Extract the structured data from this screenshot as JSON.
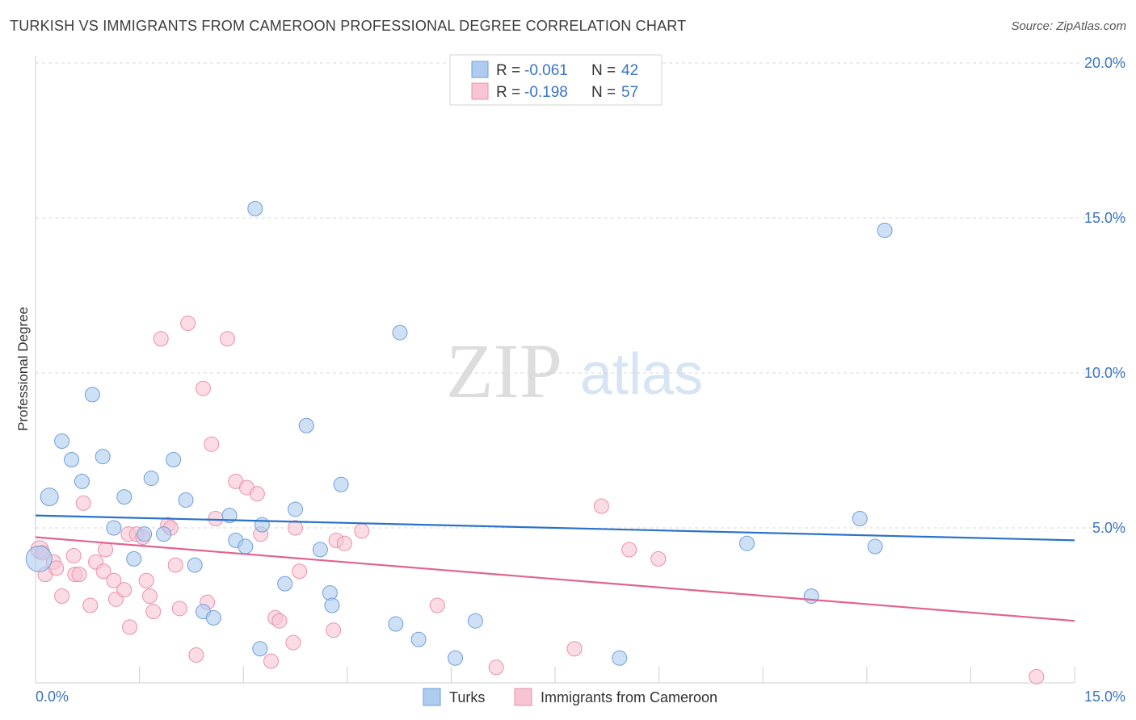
{
  "header": {
    "title": "TURKISH VS IMMIGRANTS FROM CAMEROON PROFESSIONAL DEGREE CORRELATION CHART",
    "source": "Source: ZipAtlas.com"
  },
  "watermark": {
    "zip": "ZIP",
    "atlas": "atlas"
  },
  "stats_legend": {
    "rows": [
      {
        "r_label": "R = ",
        "r_value": "-0.061",
        "n_label": "N = ",
        "n_value": "42",
        "color": "#a9c8ee"
      },
      {
        "r_label": "R = ",
        "r_value": "-0.198",
        "n_label": "N = ",
        "n_value": "57",
        "color": "#f6b8cb"
      }
    ]
  },
  "colors": {
    "turks_fill": "#aecbf0",
    "turks_stroke": "#6f9fd8",
    "turks_line": "#2a72c9",
    "cam_fill": "#f8c4d3",
    "cam_stroke": "#ea8fab",
    "cam_line": "#e0648f",
    "grid": "#d9d9d9",
    "axis_label": "#3a74c4"
  },
  "chart_data": {
    "type": "scatter",
    "title": "TURKISH VS IMMIGRANTS FROM CAMEROON PROFESSIONAL DEGREE CORRELATION CHART",
    "xlabel": "",
    "ylabel": "Professional Degree",
    "xlim": [
      0,
      15
    ],
    "ylim": [
      0,
      20
    ],
    "x_tick_labels": [
      "0.0%",
      "15.0%"
    ],
    "y_ticks": [
      5,
      10,
      15,
      20
    ],
    "y_tick_labels": [
      "5.0%",
      "10.0%",
      "15.0%",
      "20.0%"
    ],
    "grid": true,
    "legend_placement": "bottom-center",
    "series": [
      {
        "name": "Turks",
        "r": -0.061,
        "n": 42,
        "trend": [
          [
            0,
            5.4
          ],
          [
            15,
            4.6
          ]
        ],
        "points": [
          [
            0.05,
            4.0,
            16
          ],
          [
            0.2,
            6.0,
            11
          ],
          [
            0.38,
            7.8,
            9
          ],
          [
            0.52,
            7.2,
            9
          ],
          [
            0.67,
            6.5,
            9
          ],
          [
            0.82,
            9.3,
            9
          ],
          [
            0.97,
            7.3,
            9
          ],
          [
            1.13,
            5.0,
            9
          ],
          [
            1.28,
            6.0,
            9
          ],
          [
            1.42,
            4.0,
            9
          ],
          [
            1.57,
            4.8,
            9
          ],
          [
            1.67,
            6.6,
            9
          ],
          [
            1.85,
            4.8,
            9
          ],
          [
            1.99,
            7.2,
            9
          ],
          [
            2.17,
            5.9,
            9
          ],
          [
            2.3,
            3.8,
            9
          ],
          [
            2.42,
            2.3,
            9
          ],
          [
            2.57,
            2.1,
            9
          ],
          [
            2.8,
            5.4,
            9
          ],
          [
            2.89,
            4.6,
            9
          ],
          [
            3.03,
            4.4,
            9
          ],
          [
            3.17,
            15.3,
            9
          ],
          [
            3.24,
            1.1,
            9
          ],
          [
            3.27,
            5.1,
            9
          ],
          [
            3.6,
            3.2,
            9
          ],
          [
            3.75,
            5.6,
            9
          ],
          [
            3.91,
            8.3,
            9
          ],
          [
            4.11,
            4.3,
            9
          ],
          [
            4.25,
            2.9,
            9
          ],
          [
            4.28,
            2.5,
            9
          ],
          [
            4.41,
            6.4,
            9
          ],
          [
            5.2,
            1.9,
            9
          ],
          [
            5.26,
            11.3,
            9
          ],
          [
            5.53,
            1.4,
            9
          ],
          [
            6.06,
            0.8,
            9
          ],
          [
            6.35,
            2.0,
            9
          ],
          [
            8.43,
            0.8,
            9
          ],
          [
            10.27,
            4.5,
            9
          ],
          [
            11.2,
            2.8,
            9
          ],
          [
            11.9,
            5.3,
            9
          ],
          [
            12.12,
            4.4,
            9
          ],
          [
            12.26,
            14.6,
            9
          ]
        ]
      },
      {
        "name": "Immigrants from Cameroon",
        "r": -0.198,
        "n": 57,
        "trend": [
          [
            0,
            4.7
          ],
          [
            15,
            2.0
          ]
        ],
        "points": [
          [
            0.06,
            4.3,
            11
          ],
          [
            0.14,
            3.5,
            9
          ],
          [
            0.26,
            3.9,
            9
          ],
          [
            0.3,
            3.7,
            9
          ],
          [
            0.38,
            2.8,
            9
          ],
          [
            0.55,
            4.1,
            9
          ],
          [
            0.57,
            3.5,
            9
          ],
          [
            0.63,
            3.5,
            9
          ],
          [
            0.69,
            5.8,
            9
          ],
          [
            0.79,
            2.5,
            9
          ],
          [
            0.87,
            3.9,
            9
          ],
          [
            0.98,
            3.6,
            9
          ],
          [
            1.01,
            4.3,
            9
          ],
          [
            1.13,
            3.3,
            9
          ],
          [
            1.16,
            2.7,
            9
          ],
          [
            1.28,
            3.0,
            9
          ],
          [
            1.34,
            4.8,
            9
          ],
          [
            1.36,
            1.8,
            9
          ],
          [
            1.46,
            4.8,
            9
          ],
          [
            1.55,
            4.7,
            9
          ],
          [
            1.6,
            3.3,
            9
          ],
          [
            1.65,
            2.8,
            9
          ],
          [
            1.7,
            2.3,
            9
          ],
          [
            1.81,
            11.1,
            9
          ],
          [
            1.91,
            5.1,
            9
          ],
          [
            1.95,
            5.0,
            9
          ],
          [
            2.02,
            3.8,
            9
          ],
          [
            2.08,
            2.4,
            9
          ],
          [
            2.2,
            11.6,
            9
          ],
          [
            2.32,
            0.9,
            9
          ],
          [
            2.42,
            9.5,
            9
          ],
          [
            2.48,
            2.6,
            9
          ],
          [
            2.54,
            7.7,
            9
          ],
          [
            2.6,
            5.3,
            9
          ],
          [
            2.77,
            11.1,
            9
          ],
          [
            2.89,
            6.5,
            9
          ],
          [
            3.05,
            6.3,
            9
          ],
          [
            3.2,
            6.1,
            9
          ],
          [
            3.25,
            4.8,
            9
          ],
          [
            3.4,
            0.7,
            9
          ],
          [
            3.46,
            2.1,
            9
          ],
          [
            3.52,
            2.0,
            9
          ],
          [
            3.72,
            1.3,
            9
          ],
          [
            3.75,
            5.0,
            9
          ],
          [
            3.81,
            3.6,
            9
          ],
          [
            4.3,
            1.7,
            9
          ],
          [
            4.34,
            4.6,
            9
          ],
          [
            4.46,
            4.5,
            9
          ],
          [
            4.71,
            4.9,
            9
          ],
          [
            5.8,
            2.5,
            9
          ],
          [
            6.65,
            0.5,
            9
          ],
          [
            7.78,
            1.1,
            9
          ],
          [
            8.17,
            5.7,
            9
          ],
          [
            8.57,
            4.3,
            9
          ],
          [
            8.99,
            4.0,
            9
          ],
          [
            14.45,
            0.2,
            9
          ],
          [
            0.1,
            4.2,
            9
          ]
        ]
      }
    ]
  }
}
